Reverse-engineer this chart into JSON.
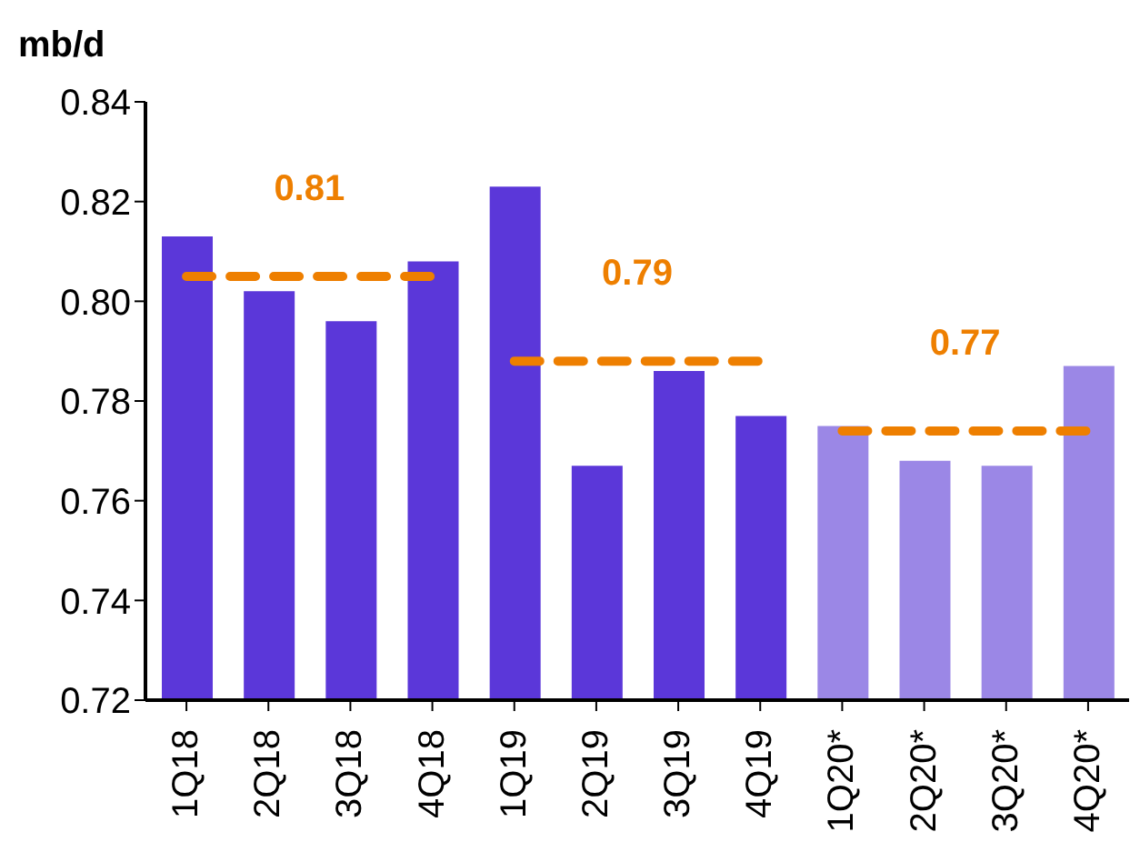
{
  "chart_data": {
    "type": "bar",
    "ylabel": "mb/d",
    "categories": [
      "1Q18",
      "2Q18",
      "3Q18",
      "4Q18",
      "1Q19",
      "2Q19",
      "3Q19",
      "4Q19",
      "1Q20*",
      "2Q20*",
      "3Q20*",
      "4Q20*"
    ],
    "series": [
      {
        "colors": [
          "#5b37d9",
          "#5b37d9",
          "#5b37d9",
          "#5b37d9",
          "#5b37d9",
          "#5b37d9",
          "#5b37d9",
          "#5b37d9",
          "#9b87e6",
          "#9b87e6",
          "#9b87e6",
          "#9b87e6"
        ],
        "values": [
          0.813,
          0.802,
          0.796,
          0.808,
          0.823,
          0.767,
          0.786,
          0.777,
          0.775,
          0.768,
          0.767,
          0.787
        ]
      },
      {
        "type": "line",
        "color": "#ee7f00",
        "line_style": "dashed",
        "values": [
          0.805,
          0.805,
          0.805,
          0.805,
          null,
          null,
          null,
          null,
          null,
          null,
          null,
          null
        ]
      },
      {
        "type": "line",
        "color": "#ee7f00",
        "line_style": "dashed",
        "values": [
          null,
          null,
          null,
          null,
          0.788,
          0.788,
          0.788,
          0.788,
          null,
          null,
          null,
          null
        ]
      },
      {
        "type": "line",
        "color": "#ee7f00",
        "line_style": "dashed",
        "values": [
          null,
          null,
          null,
          null,
          null,
          null,
          null,
          null,
          0.774,
          0.774,
          0.774,
          0.774
        ]
      }
    ],
    "annotations": [
      "0.81",
      "0.79",
      "0.77"
    ],
    "ylim": [
      0.72,
      0.84
    ],
    "yticks": [
      0.72,
      0.74,
      0.76,
      0.78,
      {
        "value": 0.8,
        "label": "0.80"
      },
      0.82,
      0.84
    ],
    "grid": false,
    "legend": false
  }
}
